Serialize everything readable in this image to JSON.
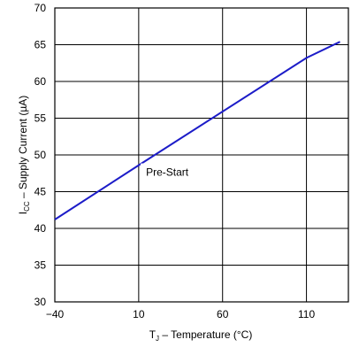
{
  "chart_data": {
    "type": "line",
    "xlabel": {
      "main": "T",
      "sub": "J",
      "rest": " – Temperature (°C)"
    },
    "ylabel": {
      "main": "I",
      "sub": "CC",
      "rest": " – Supply Current (µA)"
    },
    "xlim": [
      -40,
      135
    ],
    "ylim": [
      30,
      70
    ],
    "x_ticks": [
      -40,
      10,
      60,
      110
    ],
    "y_ticks": [
      30,
      35,
      40,
      45,
      50,
      55,
      60,
      65,
      70
    ],
    "grid": true,
    "series": [
      {
        "color": "#1c1cc8",
        "x": [
          -40,
          10,
          60,
          110,
          130
        ],
        "y": [
          41.2,
          48.6,
          55.9,
          63.2,
          65.4
        ]
      }
    ],
    "annotations": [
      {
        "text": "Pre-Start",
        "x": 27,
        "y": 47.4
      }
    ]
  }
}
